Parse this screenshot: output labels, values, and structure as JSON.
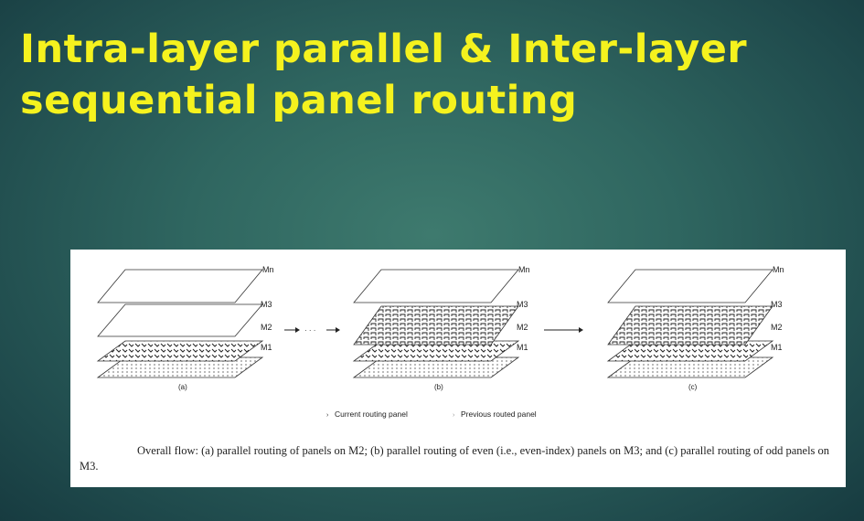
{
  "slide": {
    "title_line1": "Intra-layer parallel & Inter-layer",
    "title_line2": "sequential panel routing",
    "title_color": "#f5f21e"
  },
  "figure": {
    "layer_labels": {
      "mn": "Mn",
      "m3": "M3",
      "m2": "M2",
      "m1": "M1"
    },
    "sublabels": [
      "(a)",
      "(b)",
      "(c)"
    ],
    "ellipsis": "· · ·",
    "legend": {
      "current": "Current routing panel",
      "previous": "Previous routed panel"
    },
    "caption": "Overall flow: (a) parallel routing of panels on M2; (b) parallel routing of even (i.e., even-index) panels on M3; and (c) parallel routing of odd panels on M3."
  }
}
